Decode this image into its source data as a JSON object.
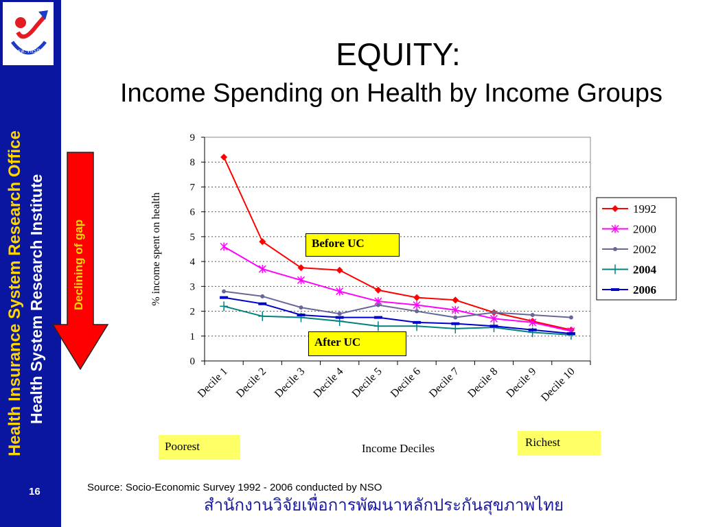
{
  "sidebar": {
    "line1": "Health Insurance System Research Office",
    "line2": "Health System Research Institute",
    "page_number": "16",
    "logo_text": "สวรส. HISRO"
  },
  "slide": {
    "title": "EQUITY:",
    "subtitle": "Income Spending on Health by Income Groups",
    "gap_label": "Declining of gap",
    "before_label": "Before UC",
    "after_label": "After UC",
    "poorest_label": "Poorest",
    "richest_label": "Richest",
    "source": "Source: Socio-Economic Survey 1992 - 2006 conducted by NSO",
    "footer_thai": "สำนักงานวิจัยเพื่อการพัฒนาหลักประกันสุขภาพไทย"
  },
  "chart_data": {
    "type": "line",
    "title": "",
    "xlabel": "Income Deciles",
    "ylabel": "% income spent on health",
    "ylim": [
      0,
      9
    ],
    "yticks": [
      "0",
      "1",
      "2",
      "3",
      "4",
      "5",
      "6",
      "7",
      "8",
      "9"
    ],
    "categories": [
      "Decile 1",
      "Decile 2",
      "Decile 3",
      "Decile 4",
      "Decile 5",
      "Decile 6",
      "Decile 7",
      "Decile 8",
      "Decile 9",
      "Decile 10"
    ],
    "grid": "horizontal dotted",
    "legend_position": "right",
    "series": [
      {
        "name": "1992",
        "color": "#ff0000",
        "marker": "diamond",
        "values": [
          8.2,
          4.8,
          3.75,
          3.65,
          2.85,
          2.55,
          2.45,
          1.95,
          1.6,
          1.25
        ]
      },
      {
        "name": "2000",
        "color": "#ff00ff",
        "marker": "star",
        "values": [
          4.6,
          3.7,
          3.25,
          2.8,
          2.4,
          2.25,
          2.05,
          1.7,
          1.55,
          1.2
        ]
      },
      {
        "name": "2002",
        "color": "#666699",
        "marker": "circle",
        "values": [
          2.8,
          2.6,
          2.15,
          1.9,
          2.25,
          2.0,
          1.75,
          1.95,
          1.85,
          1.75
        ]
      },
      {
        "name": "2004",
        "color": "#008080",
        "marker": "plus",
        "values": [
          2.2,
          1.8,
          1.75,
          1.6,
          1.4,
          1.4,
          1.3,
          1.35,
          1.15,
          1.05
        ]
      },
      {
        "name": "2006",
        "color": "#0000cc",
        "marker": "dash",
        "values": [
          2.55,
          2.3,
          1.85,
          1.75,
          1.75,
          1.55,
          1.5,
          1.4,
          1.25,
          1.1
        ]
      }
    ]
  }
}
